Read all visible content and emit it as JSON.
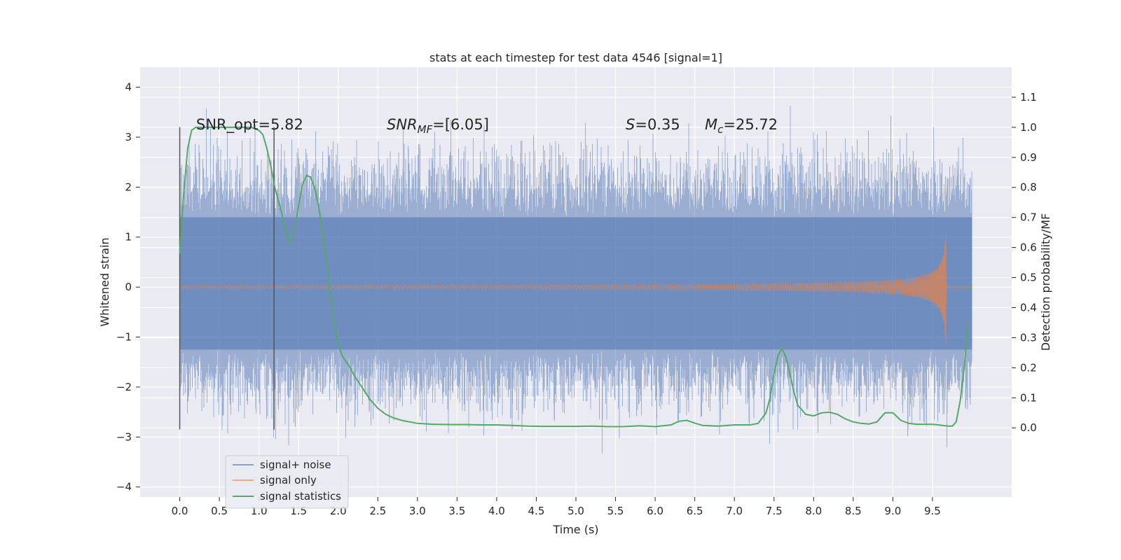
{
  "chart_data": {
    "type": "line",
    "title": "stats at each timestep for test data 4546 [signal=1]",
    "xlabel": "Time (s)",
    "ylabel_left": "Whitened strain",
    "ylabel_right": "Detection probability/MF",
    "xlim": [
      -0.5,
      10.5
    ],
    "ylim_left": [
      -4.2,
      4.4
    ],
    "ylim_right": [
      -0.23,
      1.2
    ],
    "x_ticks": [
      "0.0",
      "0.5",
      "1.0",
      "1.5",
      "2.0",
      "2.5",
      "3.0",
      "3.5",
      "4.0",
      "4.5",
      "5.0",
      "5.5",
      "6.0",
      "6.5",
      "7.0",
      "7.5",
      "8.0",
      "8.5",
      "9.0",
      "9.5"
    ],
    "x_tick_values": [
      0,
      0.5,
      1,
      1.5,
      2,
      2.5,
      3,
      3.5,
      4,
      4.5,
      5,
      5.5,
      6,
      6.5,
      7,
      7.5,
      8,
      8.5,
      9,
      9.5
    ],
    "y_left_ticks": [
      "4",
      "3",
      "2",
      "1",
      "0",
      "−1",
      "−2",
      "−3",
      "−4"
    ],
    "y_left_tick_values": [
      4,
      3,
      2,
      1,
      0,
      -1,
      -2,
      -3,
      -4
    ],
    "y_right_ticks": [
      "1.1",
      "1.0",
      "0.9",
      "0.8",
      "0.7",
      "0.6",
      "0.5",
      "0.4",
      "0.3",
      "0.2",
      "0.1",
      "0.0"
    ],
    "y_right_tick_values": [
      1.1,
      1.0,
      0.9,
      0.8,
      0.7,
      0.6,
      0.5,
      0.4,
      0.3,
      0.2,
      0.1,
      0.0
    ],
    "grid": true,
    "legend_placement": "lower-left",
    "annotations": {
      "snr_opt": "SNR_opt=5.82",
      "snr_mf_base": "SNR",
      "snr_mf_sub": "MF",
      "snr_mf_value": "=[6.05]",
      "s_symbol": "S",
      "s_value": "=0.35",
      "mc_symbol": "M",
      "mc_sub": "c",
      "mc_value": "=25.72"
    },
    "vertical_markers": [
      {
        "x": 0.0,
        "y_range": [
          -2.85,
          3.2
        ]
      },
      {
        "x": 1.19,
        "y_range": [
          -2.85,
          3.2
        ]
      }
    ],
    "series": [
      {
        "name": "signal+ noise",
        "color": "#4c72b0",
        "kind": "noise",
        "x_range": [
          0.0,
          10.0
        ],
        "band": [
          -1.25,
          1.4
        ],
        "peak_range": [
          -3.65,
          4.05
        ]
      },
      {
        "name": "signal only",
        "color": "#dd8452",
        "kind": "chirp",
        "merger_time": 9.67,
        "peak_amplitude": 1.2,
        "end_time": 10.0
      },
      {
        "name": "signal statistics",
        "color": "#55a868",
        "axis": "right",
        "x": [
          0.0,
          0.05,
          0.1,
          0.15,
          0.2,
          0.3,
          0.4,
          0.5,
          0.6,
          0.7,
          0.8,
          0.9,
          1.0,
          1.05,
          1.1,
          1.15,
          1.2,
          1.25,
          1.3,
          1.35,
          1.4,
          1.45,
          1.5,
          1.55,
          1.6,
          1.65,
          1.7,
          1.75,
          1.8,
          1.85,
          1.9,
          1.95,
          2.0,
          2.05,
          2.1,
          2.15,
          2.2,
          2.3,
          2.4,
          2.5,
          2.6,
          2.7,
          2.8,
          2.9,
          3.0,
          3.2,
          3.4,
          3.6,
          3.8,
          4.0,
          4.2,
          4.4,
          4.6,
          4.8,
          5.0,
          5.2,
          5.4,
          5.6,
          5.8,
          6.0,
          6.2,
          6.3,
          6.4,
          6.5,
          6.6,
          6.8,
          7.0,
          7.2,
          7.3,
          7.4,
          7.45,
          7.5,
          7.55,
          7.6,
          7.65,
          7.7,
          7.75,
          7.8,
          7.9,
          8.0,
          8.1,
          8.2,
          8.3,
          8.4,
          8.5,
          8.6,
          8.7,
          8.8,
          8.9,
          9.0,
          9.1,
          9.2,
          9.3,
          9.4,
          9.5,
          9.6,
          9.7,
          9.75,
          9.8,
          9.85,
          9.9,
          9.95
        ],
        "y": [
          0.58,
          0.78,
          0.93,
          0.99,
          1.0,
          1.0,
          1.0,
          1.0,
          1.0,
          1.0,
          1.0,
          1.0,
          0.99,
          0.975,
          0.93,
          0.87,
          0.8,
          0.75,
          0.7,
          0.64,
          0.615,
          0.66,
          0.74,
          0.81,
          0.84,
          0.835,
          0.8,
          0.74,
          0.66,
          0.56,
          0.45,
          0.35,
          0.28,
          0.24,
          0.22,
          0.2,
          0.175,
          0.135,
          0.095,
          0.065,
          0.045,
          0.033,
          0.025,
          0.02,
          0.015,
          0.012,
          0.011,
          0.011,
          0.01,
          0.01,
          0.008,
          0.006,
          0.005,
          0.005,
          0.005,
          0.006,
          0.004,
          0.004,
          0.007,
          0.004,
          0.01,
          0.022,
          0.025,
          0.016,
          0.008,
          0.006,
          0.01,
          0.01,
          0.015,
          0.05,
          0.1,
          0.18,
          0.24,
          0.265,
          0.235,
          0.18,
          0.12,
          0.075,
          0.045,
          0.04,
          0.05,
          0.052,
          0.045,
          0.03,
          0.02,
          0.015,
          0.013,
          0.02,
          0.05,
          0.05,
          0.025,
          0.015,
          0.012,
          0.012,
          0.012,
          0.009,
          0.006,
          0.006,
          0.02,
          0.09,
          0.2,
          0.35
        ]
      }
    ]
  }
}
